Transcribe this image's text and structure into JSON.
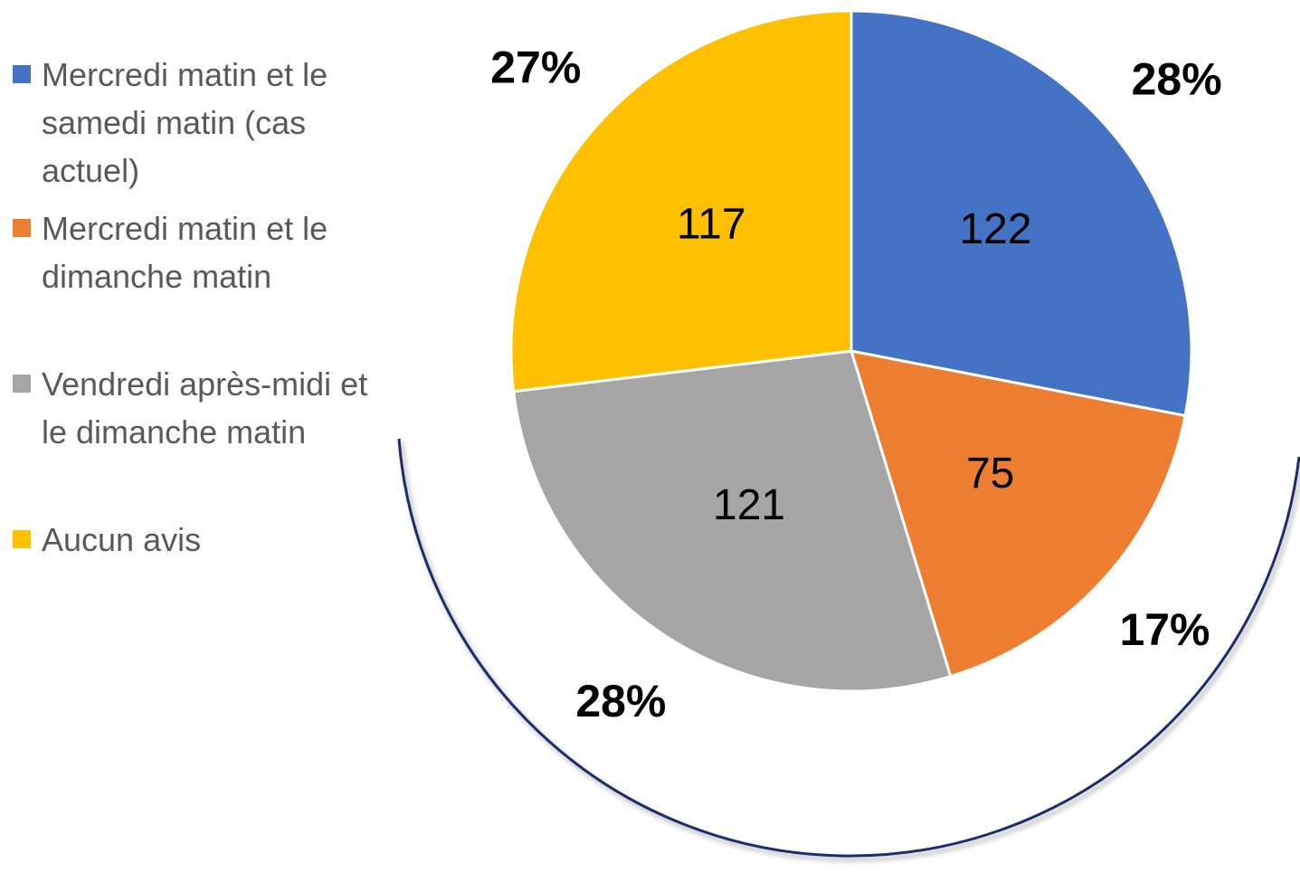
{
  "chart_data": {
    "type": "pie",
    "categories": [
      "Mercredi matin et le samedi matin (cas actuel)",
      "Mercredi matin et le dimanche matin",
      "Vendredi après-midi et le dimanche matin",
      "Aucun avis"
    ],
    "values": [
      122,
      75,
      121,
      117
    ],
    "percent_labels": [
      "28%",
      "17%",
      "28%",
      "27%"
    ],
    "colors": [
      "#4472c4",
      "#ed7d31",
      "#a5a5a5",
      "#ffc000"
    ],
    "legend": "left"
  }
}
